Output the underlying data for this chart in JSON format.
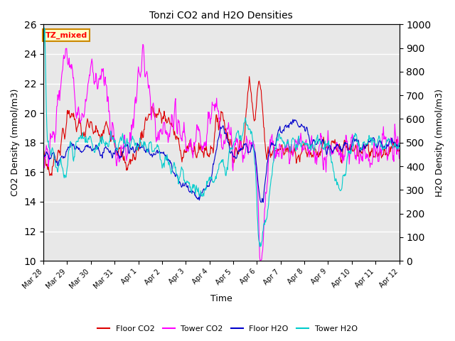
{
  "title": "Tonzi CO2 and H2O Densities",
  "xlabel": "Time",
  "ylabel_left": "CO2 Density (mmol/m3)",
  "ylabel_right": "H2O Density (mmol/m3)",
  "annotation": "TZ_mixed",
  "ylim_left": [
    10,
    26
  ],
  "ylim_right": [
    0,
    1000
  ],
  "yticks_left": [
    10,
    12,
    14,
    16,
    18,
    20,
    22,
    24,
    26
  ],
  "yticks_right": [
    0,
    100,
    200,
    300,
    400,
    500,
    600,
    700,
    800,
    900,
    1000
  ],
  "xtick_labels": [
    "Mar 28",
    "Mar 29",
    "Mar 30",
    "Mar 31",
    "Apr 1",
    "Apr 2",
    "Apr 3",
    "Apr 4",
    "Apr 5",
    "Apr 6",
    "Apr 7",
    "Apr 8",
    "Apr 9",
    "Apr 10",
    "Apr 11",
    "Apr 12"
  ],
  "legend_labels": [
    "Floor CO2",
    "Tower CO2",
    "Floor H2O",
    "Tower H2O"
  ],
  "colors": {
    "floor_co2": "#dd0000",
    "tower_co2": "#ff00ff",
    "floor_h2o": "#0000cc",
    "tower_h2o": "#00cccc"
  },
  "background_color": "#e8e8e8",
  "line_width": 0.8,
  "grid_color": "#ffffff"
}
